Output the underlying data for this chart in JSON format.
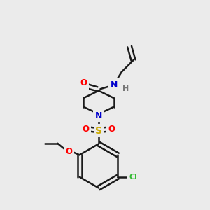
{
  "background_color": "#ebebeb",
  "bond_color": "#1a1a1a",
  "atom_colors": {
    "O": "#ff0000",
    "N": "#0000cc",
    "S": "#ccaa00",
    "Cl": "#33bb33",
    "C": "#1a1a1a",
    "H": "#777777"
  },
  "figsize": [
    3.0,
    3.0
  ],
  "dpi": 100
}
